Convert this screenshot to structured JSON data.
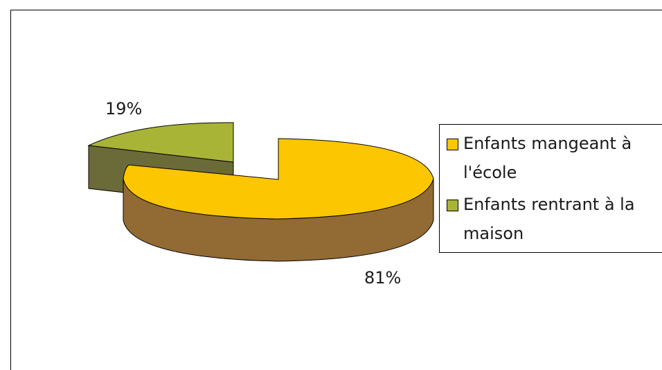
{
  "chart_data": {
    "type": "pie",
    "title": "",
    "slices": [
      {
        "label": "Enfants mangeant à l'école",
        "value": 81,
        "value_label": "81%",
        "color": "#fcc600",
        "side_color": "#926a34"
      },
      {
        "label": "Enfants rentrant à la maison",
        "value": 19,
        "value_label": "19%",
        "color": "#a8b435",
        "side_color": "#6b6b3a"
      }
    ],
    "legend_position": "right",
    "three_d": true,
    "exploded": true
  }
}
